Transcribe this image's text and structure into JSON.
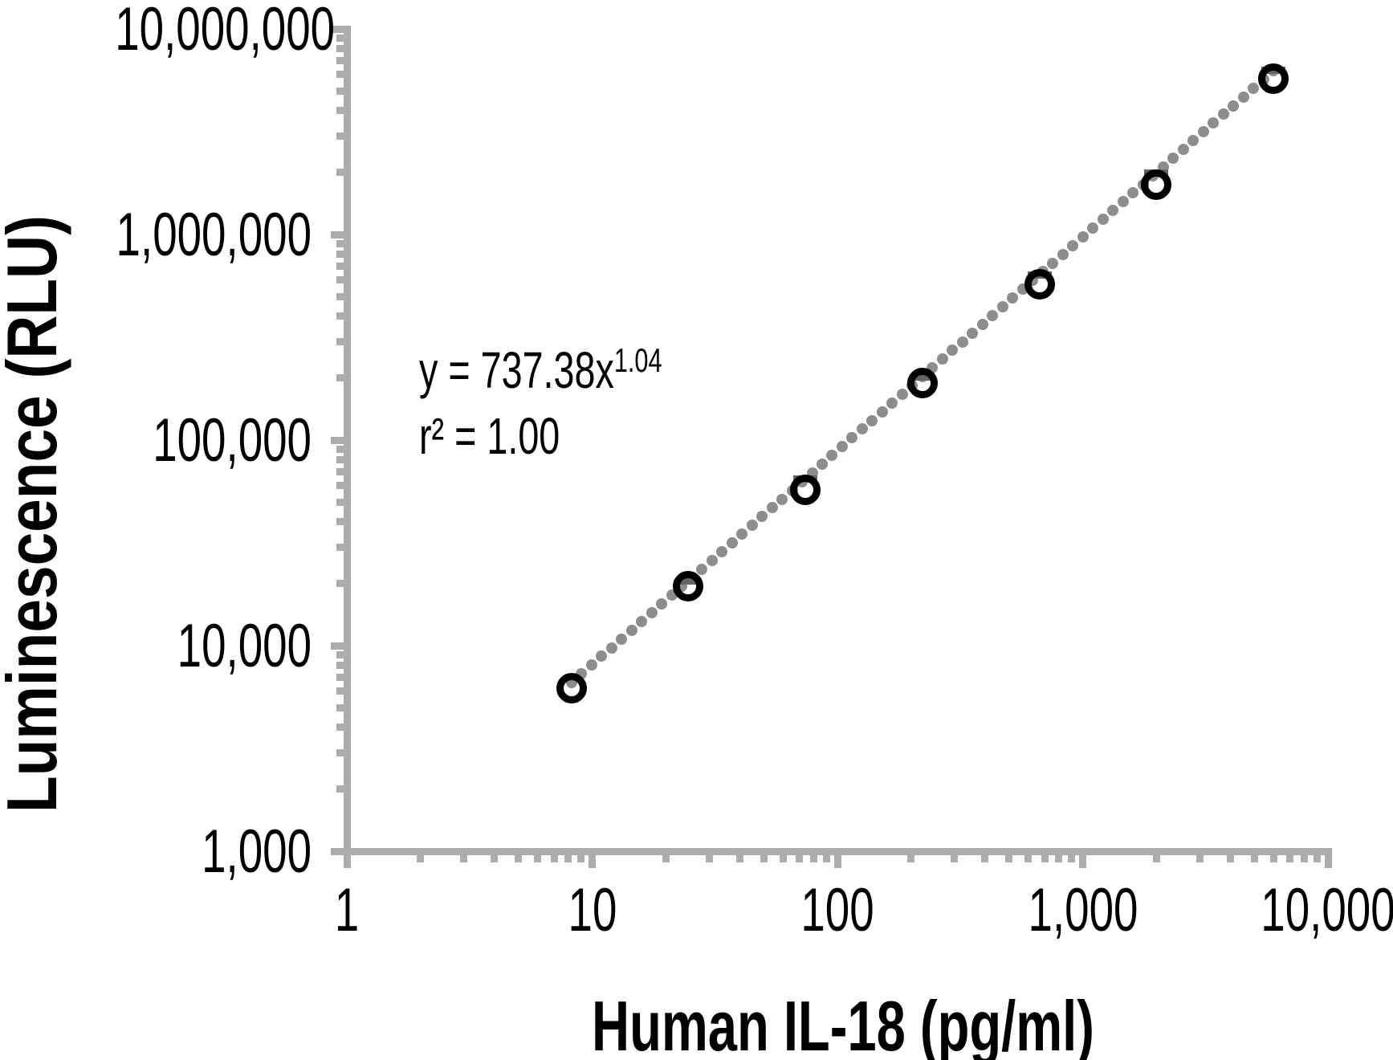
{
  "chart_data": {
    "type": "scatter",
    "title": "",
    "xlabel": "Human IL-18 (pg/ml)",
    "ylabel": "Luminescence (RLU)",
    "x_scale": "log",
    "y_scale": "log",
    "xlim": [
      1,
      10000
    ],
    "ylim": [
      1000,
      10000000
    ],
    "grid": false,
    "legend_position": "none",
    "x_ticks": [
      {
        "value": 1,
        "label": "1"
      },
      {
        "value": 10,
        "label": "10"
      },
      {
        "value": 100,
        "label": "100"
      },
      {
        "value": 1000,
        "label": "1,000"
      },
      {
        "value": 10000,
        "label": "10,000"
      }
    ],
    "y_ticks": [
      {
        "value": 1000,
        "label": "1,000"
      },
      {
        "value": 10000,
        "label": "10,000"
      },
      {
        "value": 100000,
        "label": "100,000"
      },
      {
        "value": 1000000,
        "label": "1,000,000"
      },
      {
        "value": 10000000,
        "label": "10,000,000"
      }
    ],
    "points": [
      {
        "x": 8.23,
        "y": 6200
      },
      {
        "x": 24.69,
        "y": 19500
      },
      {
        "x": 74.07,
        "y": 57000
      },
      {
        "x": 222.22,
        "y": 190000
      },
      {
        "x": 666.67,
        "y": 575000
      },
      {
        "x": 2000,
        "y": 1750000
      },
      {
        "x": 6000,
        "y": 5700000
      }
    ],
    "trendline": {
      "type": "power",
      "coefficient": 737.38,
      "exponent": 1.04,
      "r_squared": 1.0,
      "style": "dotted"
    },
    "equation": {
      "base": "y = 737.38x",
      "exponent": "1.04",
      "r2": "r² = 1.00"
    },
    "colors": {
      "axis": "#aaacad",
      "trend_dots": "#8d8d8d",
      "error_bar": "#646464",
      "marker_ring": "#000000",
      "text": "#000000",
      "background": "#ffffff"
    }
  }
}
